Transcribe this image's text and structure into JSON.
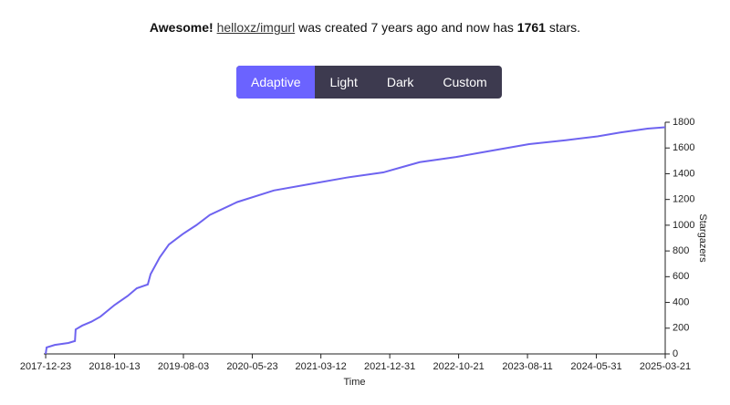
{
  "header": {
    "lead": "Awesome!",
    "repo": "helloxz/imgurl",
    "middle": "was created 7 years ago and now has",
    "stars": 1761,
    "tail": "stars."
  },
  "tabs": [
    "Adaptive",
    "Light",
    "Dark",
    "Custom"
  ],
  "chart_data": {
    "type": "line",
    "x_label": "Time",
    "y_label": "Stargazers",
    "x": [
      "2017-12-23",
      "2017-12-27",
      "2018-01-31",
      "2018-03-30",
      "2018-04-27",
      "2018-04-30",
      "2018-05-28",
      "2018-07-06",
      "2018-08-14",
      "2018-10-13",
      "2018-12-08",
      "2019-01-16",
      "2019-03-04",
      "2019-03-16",
      "2019-04-24",
      "2019-06-02",
      "2019-07-30",
      "2019-09-27",
      "2019-11-24",
      "2020-03-20",
      "2020-08-23",
      "2021-01-25",
      "2021-06-30",
      "2021-12-03",
      "2022-02-19",
      "2022-05-08",
      "2022-10-10",
      "2023-03-15",
      "2023-08-18",
      "2024-01-21",
      "2024-06-05",
      "2024-09-10",
      "2025-01-05",
      "2025-03-21"
    ],
    "series": [
      {
        "name": "helloxz/imgurl",
        "color": "#6e63f0",
        "values": [
          0,
          50,
          70,
          85,
          100,
          190,
          220,
          250,
          290,
          380,
          450,
          510,
          540,
          620,
          750,
          850,
          930,
          1000,
          1080,
          1180,
          1270,
          1320,
          1370,
          1410,
          1450,
          1490,
          1530,
          1580,
          1630,
          1660,
          1690,
          1720,
          1750,
          1761
        ]
      }
    ],
    "xlim": [
      "2017-12-15",
      "2025-03-21"
    ],
    "xticks": [
      "2017-12-23",
      "2018-10-13",
      "2019-08-03",
      "2020-05-23",
      "2021-03-12",
      "2021-12-31",
      "2022-10-21",
      "2023-08-11",
      "2024-05-31",
      "2025-03-21"
    ],
    "ylim": [
      0,
      1800
    ],
    "yticks": [
      0,
      200,
      400,
      600,
      800,
      1000,
      1200,
      1400,
      1600,
      1800
    ],
    "y_axis_side": "right"
  }
}
